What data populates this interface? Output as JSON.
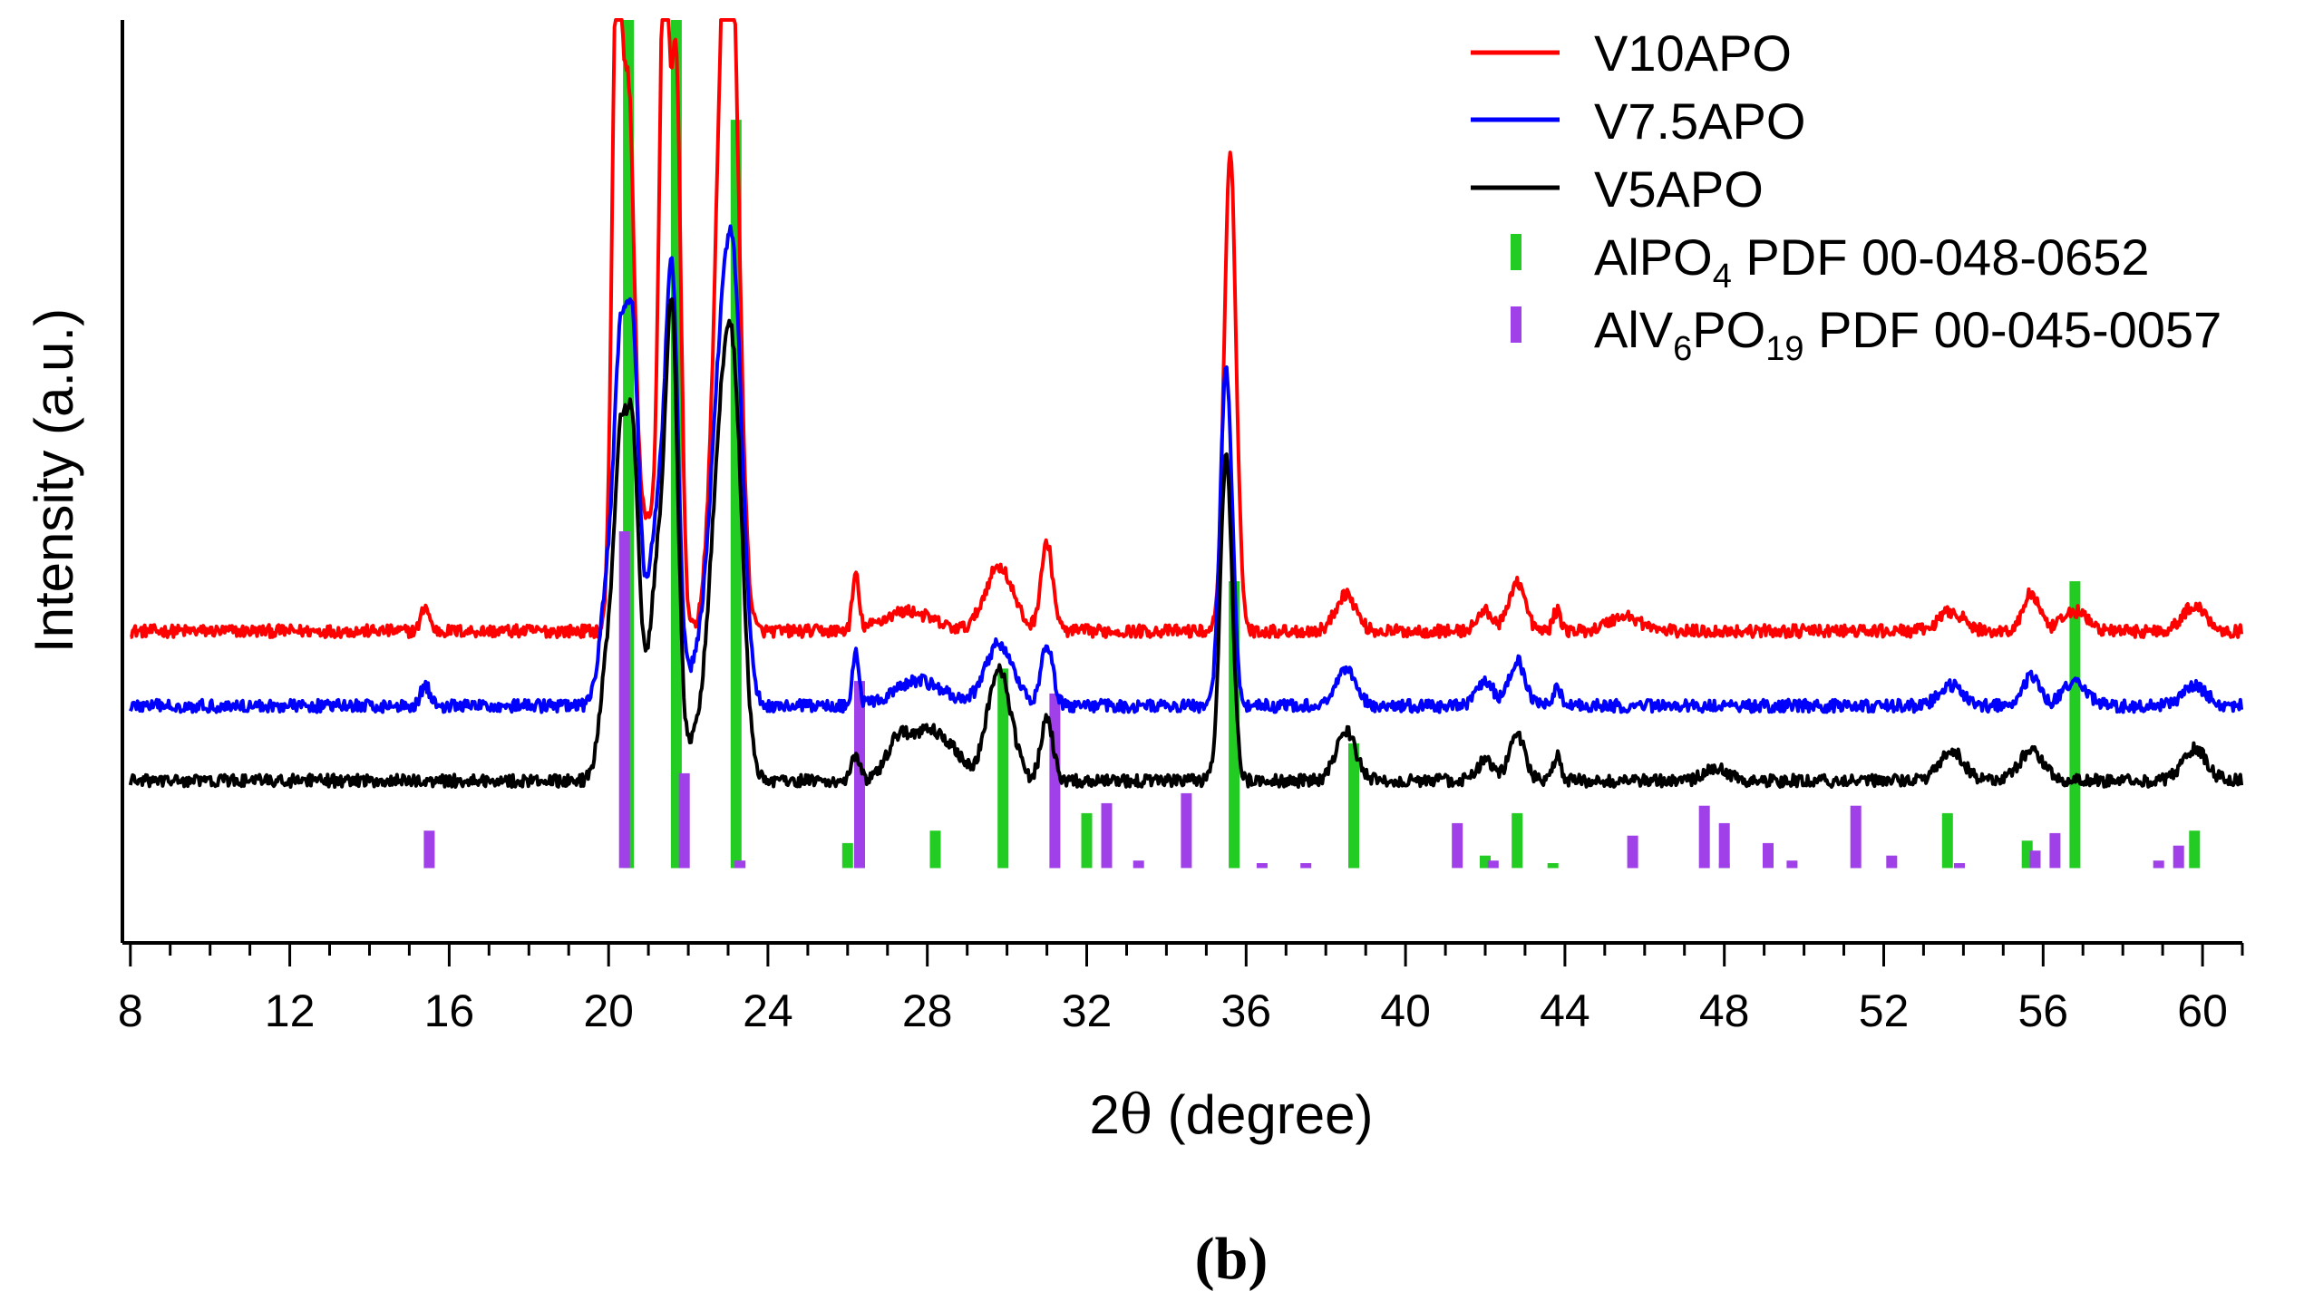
{
  "chart_data": {
    "type": "line",
    "xlabel_prefix": "2",
    "xlabel_symbol": "θ",
    "xlabel_suffix": " (degree)",
    "ylabel": "Intensity (a.u.)",
    "panel_label": "(b)",
    "xlim": [
      7.8,
      61
    ],
    "ylim": [
      -3,
      34
    ],
    "xticks": [
      8,
      12,
      16,
      20,
      24,
      28,
      32,
      36,
      40,
      44,
      48,
      52,
      56,
      60
    ],
    "x_minor_step": 1,
    "yticks_shown": false,
    "series": [
      {
        "name": "V10APO",
        "color": "#ff0000",
        "baseline": 9.5,
        "noise": 0.25,
        "peaks": [
          [
            15.4,
            1.0,
            0.1
          ],
          [
            20.2,
            25.0,
            0.12
          ],
          [
            20.5,
            20.0,
            0.15
          ],
          [
            21.0,
            4.5,
            0.3
          ],
          [
            21.4,
            26.0,
            0.12
          ],
          [
            21.7,
            22.0,
            0.12
          ],
          [
            22.9,
            20.0,
            0.25
          ],
          [
            23.1,
            15.0,
            0.2
          ],
          [
            26.2,
            2.2,
            0.08
          ],
          [
            27.5,
            0.8,
            0.6
          ],
          [
            29.8,
            2.6,
            0.35
          ],
          [
            31.0,
            3.5,
            0.15
          ],
          [
            35.6,
            19.0,
            0.15
          ],
          [
            38.5,
            1.5,
            0.25
          ],
          [
            42.0,
            0.8,
            0.2
          ],
          [
            42.8,
            2.0,
            0.2
          ],
          [
            43.8,
            0.8,
            0.1
          ],
          [
            45.5,
            0.6,
            0.4
          ],
          [
            53.7,
            0.8,
            0.3
          ],
          [
            55.7,
            1.5,
            0.2
          ],
          [
            56.8,
            0.8,
            0.3
          ],
          [
            59.8,
            1.0,
            0.3
          ]
        ]
      },
      {
        "name": "V7.5APO",
        "color": "#0000ff",
        "baseline": 6.5,
        "noise": 0.25,
        "peaks": [
          [
            15.4,
            0.8,
            0.12
          ],
          [
            20.0,
            5.0,
            0.2
          ],
          [
            20.3,
            12.0,
            0.15
          ],
          [
            20.6,
            13.0,
            0.15
          ],
          [
            21.0,
            3.0,
            0.3
          ],
          [
            21.3,
            6.0,
            0.2
          ],
          [
            21.6,
            15.0,
            0.15
          ],
          [
            22.4,
            1.5,
            0.5
          ],
          [
            22.9,
            14.0,
            0.3
          ],
          [
            23.2,
            8.0,
            0.2
          ],
          [
            26.2,
            2.2,
            0.08
          ],
          [
            27.8,
            1.0,
            0.6
          ],
          [
            29.8,
            2.5,
            0.35
          ],
          [
            31.0,
            2.5,
            0.15
          ],
          [
            35.5,
            13.5,
            0.15
          ],
          [
            38.5,
            1.5,
            0.25
          ],
          [
            42.0,
            1.0,
            0.2
          ],
          [
            42.8,
            1.8,
            0.2
          ],
          [
            43.8,
            0.8,
            0.1
          ],
          [
            53.7,
            0.8,
            0.3
          ],
          [
            55.7,
            1.2,
            0.2
          ],
          [
            56.8,
            1.0,
            0.3
          ],
          [
            59.8,
            0.8,
            0.3
          ]
        ]
      },
      {
        "name": "V5APO",
        "color": "#000000",
        "baseline": 3.5,
        "noise": 0.25,
        "peaks": [
          [
            20.0,
            5.0,
            0.2
          ],
          [
            20.3,
            11.0,
            0.15
          ],
          [
            20.6,
            12.0,
            0.15
          ],
          [
            21.0,
            3.0,
            0.3
          ],
          [
            21.3,
            7.0,
            0.2
          ],
          [
            21.6,
            16.0,
            0.15
          ],
          [
            22.4,
            1.5,
            0.5
          ],
          [
            22.9,
            14.0,
            0.3
          ],
          [
            23.2,
            7.0,
            0.2
          ],
          [
            26.2,
            1.0,
            0.1
          ],
          [
            27.3,
            1.8,
            0.3
          ],
          [
            28.0,
            1.8,
            0.3
          ],
          [
            28.6,
            1.2,
            0.3
          ],
          [
            29.8,
            4.5,
            0.3
          ],
          [
            31.0,
            2.5,
            0.15
          ],
          [
            35.5,
            13.0,
            0.15
          ],
          [
            38.5,
            2.0,
            0.25
          ],
          [
            42.0,
            0.8,
            0.2
          ],
          [
            42.8,
            1.8,
            0.2
          ],
          [
            43.8,
            1.0,
            0.1
          ],
          [
            47.8,
            0.5,
            0.3
          ],
          [
            53.7,
            1.2,
            0.3
          ],
          [
            55.7,
            1.2,
            0.3
          ],
          [
            59.8,
            1.3,
            0.3
          ]
        ]
      }
    ],
    "reference_bars": [
      {
        "name": "AlPO4 PDF 00-048-0652",
        "legend_main": "AlPO",
        "legend_sub": "4",
        "legend_rest": " PDF 00-048-0652",
        "color": "#22cc22",
        "bars": [
          [
            20.5,
            44.0
          ],
          [
            21.7,
            44.0
          ],
          [
            23.2,
            30.0
          ],
          [
            26.0,
            1.0
          ],
          [
            28.2,
            1.5
          ],
          [
            29.9,
            8.0
          ],
          [
            32.0,
            2.2
          ],
          [
            35.7,
            11.5
          ],
          [
            38.7,
            5.0
          ],
          [
            42.0,
            0.5
          ],
          [
            42.8,
            2.2
          ],
          [
            43.7,
            0.2
          ],
          [
            48.0,
            0.2
          ],
          [
            53.6,
            2.2
          ],
          [
            55.6,
            1.1
          ],
          [
            56.8,
            11.5
          ],
          [
            59.8,
            1.5
          ]
        ]
      },
      {
        "name": "AlV6PO19 PDF 00-045-0057",
        "legend_main": "AlV",
        "legend_sub": "6",
        "legend_mid": "PO",
        "legend_sub2": "19",
        "legend_rest": " PDF 00-045-0057",
        "color": "#a040e8",
        "bars": [
          [
            15.5,
            1.5
          ],
          [
            20.4,
            13.5
          ],
          [
            21.9,
            3.8
          ],
          [
            23.3,
            0.3
          ],
          [
            26.3,
            7.5
          ],
          [
            31.2,
            7.0
          ],
          [
            32.5,
            2.6
          ],
          [
            33.3,
            0.3
          ],
          [
            34.5,
            3.0
          ],
          [
            36.4,
            0.2
          ],
          [
            37.5,
            0.2
          ],
          [
            41.3,
            1.8
          ],
          [
            42.2,
            0.3
          ],
          [
            45.7,
            1.3
          ],
          [
            47.5,
            2.5
          ],
          [
            48.0,
            1.8
          ],
          [
            49.1,
            1.0
          ],
          [
            49.7,
            0.3
          ],
          [
            51.3,
            2.5
          ],
          [
            52.2,
            0.5
          ],
          [
            53.9,
            0.2
          ],
          [
            55.8,
            0.7
          ],
          [
            56.3,
            1.4
          ],
          [
            58.9,
            0.3
          ],
          [
            59.4,
            0.9
          ]
        ]
      }
    ],
    "legend_position": "top-right"
  }
}
